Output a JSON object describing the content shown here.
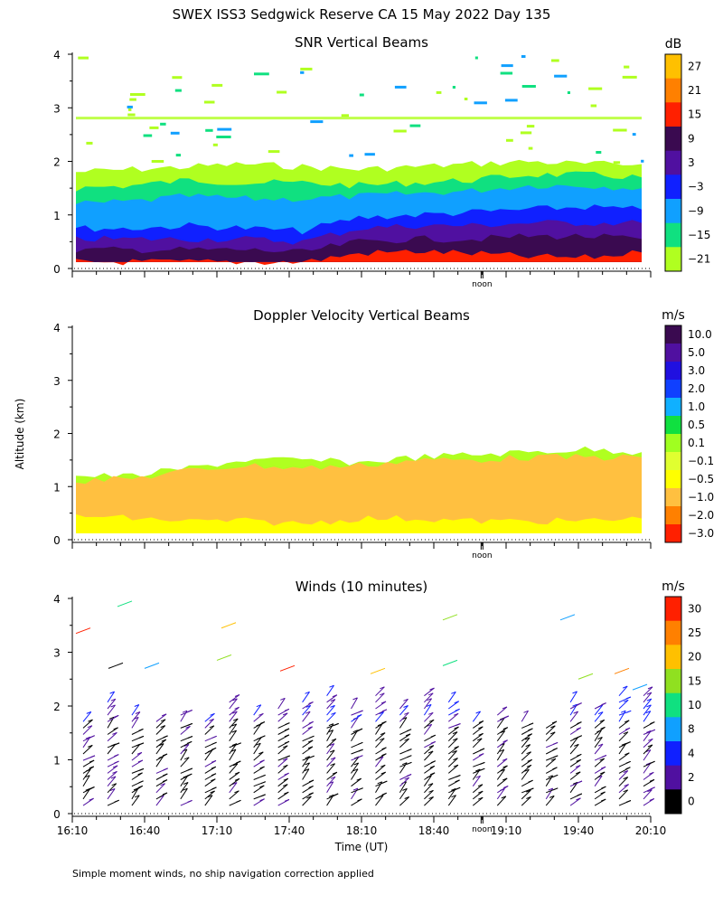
{
  "title": "SWEX ISS3 Sedgwick Reserve CA  15 May 2022 Day 135",
  "footnote": "Simple moment winds, no ship navigation correction applied",
  "chart_data": [
    {
      "type": "heatmap",
      "title": "SNR Vertical Beams",
      "ylabel": "",
      "ylim": [
        0,
        4
      ],
      "yticks": [
        "0",
        "1",
        "2",
        "3",
        "4"
      ],
      "xlim": [
        "16:10",
        "20:10"
      ],
      "noon_label": "noon",
      "noon_time": "19:00",
      "colorbar": {
        "unit": "dB",
        "labels": [
          "27",
          "21",
          "15",
          "9",
          "3",
          "−3",
          "−9",
          "−15",
          "−21"
        ],
        "colors": [
          "#ffc000",
          "#ff8000",
          "#ff2000",
          "#3a0a50",
          "#5010a0",
          "#1020ff",
          "#10a0ff",
          "#10e080",
          "#b0ff20"
        ]
      },
      "layers": [
        {
          "color": "#b0ff20",
          "top": [
            1.8,
            1.85,
            1.9,
            1.95,
            1.9,
            1.85,
            1.9,
            1.95,
            2.0,
            1.95,
            1.95
          ]
        },
        {
          "color": "#10e080",
          "top": [
            1.5,
            1.55,
            1.65,
            1.6,
            1.6,
            1.55,
            1.6,
            1.65,
            1.75,
            1.75,
            1.7
          ]
        },
        {
          "color": "#10a0ff",
          "top": [
            1.2,
            1.25,
            1.35,
            1.3,
            1.3,
            1.35,
            1.4,
            1.45,
            1.55,
            1.55,
            1.5
          ]
        },
        {
          "color": "#1020ff",
          "top": [
            0.75,
            0.75,
            0.8,
            0.75,
            0.7,
            0.95,
            1.0,
            1.05,
            1.1,
            1.15,
            1.1
          ]
        },
        {
          "color": "#5010a0",
          "top": [
            0.55,
            0.55,
            0.55,
            0.55,
            0.5,
            0.75,
            0.8,
            0.8,
            0.85,
            0.85,
            0.85
          ]
        },
        {
          "color": "#3a0a50",
          "top": [
            0.35,
            0.35,
            0.35,
            0.35,
            0.3,
            0.5,
            0.55,
            0.55,
            0.6,
            0.6,
            0.55
          ]
        },
        {
          "color": "#ff2000",
          "top": [
            0.0,
            0.0,
            0.0,
            0.0,
            0.0,
            0.28,
            0.32,
            0.28,
            0.22,
            0.2,
            0.3
          ]
        }
      ]
    },
    {
      "type": "heatmap",
      "title": "Doppler Velocity Vertical Beams",
      "ylabel": "Altitude (km)",
      "ylim": [
        0,
        4
      ],
      "yticks": [
        "0",
        "1",
        "2",
        "3",
        "4"
      ],
      "xlim": [
        "16:10",
        "20:10"
      ],
      "noon_label": "noon",
      "noon_time": "19:00",
      "colorbar": {
        "unit": "m/s",
        "labels": [
          "10.0",
          "5.0",
          "3.0",
          "2.0",
          "1.0",
          "0.5",
          "0.1",
          "−0.1",
          "−0.5",
          "−1.0",
          "−2.0",
          "−3.0"
        ],
        "colors": [
          "#3a0a50",
          "#5010a0",
          "#2010e0",
          "#1040ff",
          "#10b0ff",
          "#10e040",
          "#a0ff20",
          "#e0ff30",
          "#ffff00",
          "#ffc040",
          "#ff8000",
          "#ff2000"
        ]
      },
      "layers": [
        {
          "color": "#b0ff20",
          "top": [
            1.2,
            1.2,
            1.35,
            1.5,
            1.5,
            1.45,
            1.55,
            1.6,
            1.65,
            1.7,
            1.65
          ]
        },
        {
          "color": "#ffc040",
          "top": [
            1.1,
            1.15,
            1.3,
            1.4,
            1.35,
            1.4,
            1.5,
            1.5,
            1.55,
            1.55,
            1.55
          ]
        },
        {
          "color": "#ffff00",
          "top": [
            0.45,
            0.4,
            0.35,
            0.35,
            0.3,
            0.4,
            0.4,
            0.35,
            0.35,
            0.35,
            0.4
          ]
        }
      ]
    },
    {
      "type": "wind-barbs",
      "title": "Winds (10 minutes)",
      "ylabel": "",
      "xlabel": "Time (UT)",
      "ylim": [
        0,
        4
      ],
      "yticks": [
        "0",
        "1",
        "2",
        "3",
        "4"
      ],
      "xticks": [
        "16:10",
        "16:40",
        "17:10",
        "17:40",
        "18:10",
        "18:40",
        "19:10",
        "19:40",
        "20:10"
      ],
      "noon_label": "noon",
      "noon_time": "19:00",
      "colorbar": {
        "unit": "m/s",
        "labels": [
          "30",
          "25",
          "20",
          "15",
          "10",
          "8",
          "4",
          "2",
          "0"
        ],
        "colors": [
          "#ff2000",
          "#ff8000",
          "#ffc000",
          "#90e020",
          "#10e080",
          "#10a0ff",
          "#1020ff",
          "#5010a0",
          "#000000"
        ]
      },
      "profile_count": 24,
      "profile_tops_km": [
        1.8,
        2.1,
        1.9,
        1.8,
        1.9,
        1.8,
        2.1,
        1.9,
        2.0,
        2.1,
        2.2,
        2.0,
        2.2,
        2.0,
        2.3,
        2.1,
        1.8,
        1.9,
        1.8,
        1.7,
        2.1,
        2.0,
        2.3,
        2.3
      ]
    }
  ]
}
